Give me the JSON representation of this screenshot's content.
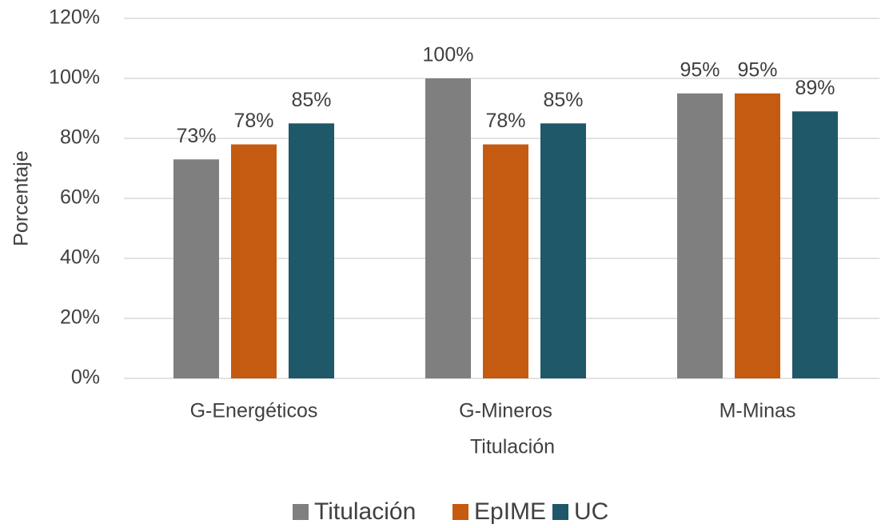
{
  "chart_data": {
    "type": "bar",
    "x_label": "Titulación",
    "y_label": "Porcentaje",
    "categories": [
      "G-Energéticos",
      "G-Mineros",
      "M-Minas"
    ],
    "series": [
      {
        "name": "Titulación",
        "color": "#7f7f7f",
        "values": [
          73,
          100,
          95
        ],
        "value_labels": [
          "73%",
          "100%",
          "95%"
        ]
      },
      {
        "name": "EpIME",
        "color": "#c55a11",
        "values": [
          78,
          78,
          95
        ],
        "value_labels": [
          "78%",
          "78%",
          "95%"
        ]
      },
      {
        "name": "UC",
        "color": "#1f5868",
        "values": [
          85,
          85,
          89
        ],
        "value_labels": [
          "85%",
          "85%",
          "89%"
        ]
      }
    ],
    "ylim": [
      0,
      120
    ],
    "yticks": [
      {
        "value": 0,
        "label": "0%"
      },
      {
        "value": 20,
        "label": "20%"
      },
      {
        "value": 40,
        "label": "40%"
      },
      {
        "value": 60,
        "label": "60%"
      },
      {
        "value": 80,
        "label": "80%"
      },
      {
        "value": 100,
        "label": "100%"
      },
      {
        "value": 120,
        "label": "120%"
      }
    ],
    "grid": true,
    "legend": "bottom"
  }
}
